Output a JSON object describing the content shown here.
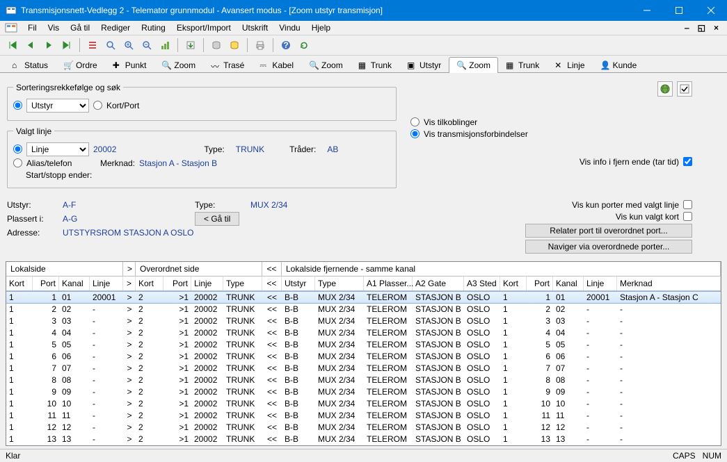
{
  "title": "Transmisjonsnett-Vedlegg 2 - Telemator grunnmodul - Avansert modus - [Zoom utstyr transmisjon]",
  "menu": [
    "Fil",
    "Vis",
    "Gå til",
    "Rediger",
    "Ruting",
    "Eksport/Import",
    "Utskrift",
    "Vindu",
    "Hjelp"
  ],
  "viewtabs": [
    {
      "label": "Status",
      "icon": "home"
    },
    {
      "label": "Ordre",
      "icon": "cart"
    },
    {
      "label": "Punkt",
      "icon": "plus"
    },
    {
      "label": "Zoom",
      "icon": "zoom"
    },
    {
      "label": "Trasé",
      "icon": "trase"
    },
    {
      "label": "Kabel",
      "icon": "cable"
    },
    {
      "label": "Zoom",
      "icon": "zoom2"
    },
    {
      "label": "Trunk",
      "icon": "trunk"
    },
    {
      "label": "Utstyr",
      "icon": "device"
    },
    {
      "label": "Zoom",
      "icon": "zoom3",
      "active": true
    },
    {
      "label": "Trunk",
      "icon": "trunk2"
    },
    {
      "label": "Linje",
      "icon": "line"
    },
    {
      "label": "Kunde",
      "icon": "cust"
    }
  ],
  "sort": {
    "legend": "Sorteringsrekkefølge og søk",
    "opt1": "Utstyr",
    "opt2": "Kort/Port"
  },
  "valgt": {
    "legend": "Valgt linje",
    "linje_label": "Linje",
    "linje_val": "20002",
    "type_label": "Type:",
    "type_val": "TRUNK",
    "trader_label": "Tråder:",
    "trader_val": "AB",
    "alias_label": "Alias/telefon",
    "merknad_label": "Merknad:",
    "merknad_val": "Stasjon A - Stasjon B",
    "start_label": "Start/stopp ender:"
  },
  "visopts": {
    "tilkoblinger": "Vis tilkoblinger",
    "transmisjon": "Vis transmisjonsforbindelser",
    "fjern": "Vis info i fjern ende (tar tid)"
  },
  "mid": {
    "utstyr_k": "Utstyr:",
    "utstyr_v": "A-F",
    "type_k": "Type:",
    "type_v": "MUX 2/34",
    "plassert_k": "Plassert i:",
    "plassert_v": "A-G",
    "adresse_k": "Adresse:",
    "adresse_v": "UTSTYRSROM STASJON A OSLO",
    "gaa_btn": "< Gå til",
    "porter_linje": "Vis kun porter med valgt linje",
    "porter_kort": "Vis kun valgt kort",
    "relater_btn": "Relater port til overordnet port...",
    "naviger_btn": "Naviger via overordnede porter..."
  },
  "grid": {
    "group1": "Lokalside",
    "group_gt": ">",
    "group2": "Overordnet side",
    "group_lt": "<<",
    "group3": "Lokalside fjernende - samme kanal",
    "cols": [
      "Kort",
      "Port",
      "Kanal",
      "Linje",
      ">",
      "Kort",
      "Port",
      "Linje",
      "Type",
      "<<",
      "Utstyr",
      "Type",
      "A1 Plasser...",
      "A2 Gate",
      "A3 Sted",
      "Kort",
      "Port",
      "Kanal",
      "Linje",
      "Merknad"
    ],
    "rows": [
      [
        "1",
        "1",
        "01",
        "20001",
        ">",
        "2",
        ">1",
        "20002",
        "TRUNK",
        "<<",
        "B-B",
        "MUX 2/34",
        "TELEROM",
        "STASJON B",
        "OSLO",
        "1",
        "1",
        "01",
        "20001",
        "Stasjon A - Stasjon C"
      ],
      [
        "1",
        "2",
        "02",
        "-",
        ">",
        "2",
        ">1",
        "20002",
        "TRUNK",
        "<<",
        "B-B",
        "MUX 2/34",
        "TELEROM",
        "STASJON B",
        "OSLO",
        "1",
        "2",
        "02",
        "-",
        "-"
      ],
      [
        "1",
        "3",
        "03",
        "-",
        ">",
        "2",
        ">1",
        "20002",
        "TRUNK",
        "<<",
        "B-B",
        "MUX 2/34",
        "TELEROM",
        "STASJON B",
        "OSLO",
        "1",
        "3",
        "03",
        "-",
        "-"
      ],
      [
        "1",
        "4",
        "04",
        "-",
        ">",
        "2",
        ">1",
        "20002",
        "TRUNK",
        "<<",
        "B-B",
        "MUX 2/34",
        "TELEROM",
        "STASJON B",
        "OSLO",
        "1",
        "4",
        "04",
        "-",
        "-"
      ],
      [
        "1",
        "5",
        "05",
        "-",
        ">",
        "2",
        ">1",
        "20002",
        "TRUNK",
        "<<",
        "B-B",
        "MUX 2/34",
        "TELEROM",
        "STASJON B",
        "OSLO",
        "1",
        "5",
        "05",
        "-",
        "-"
      ],
      [
        "1",
        "6",
        "06",
        "-",
        ">",
        "2",
        ">1",
        "20002",
        "TRUNK",
        "<<",
        "B-B",
        "MUX 2/34",
        "TELEROM",
        "STASJON B",
        "OSLO",
        "1",
        "6",
        "06",
        "-",
        "-"
      ],
      [
        "1",
        "7",
        "07",
        "-",
        ">",
        "2",
        ">1",
        "20002",
        "TRUNK",
        "<<",
        "B-B",
        "MUX 2/34",
        "TELEROM",
        "STASJON B",
        "OSLO",
        "1",
        "7",
        "07",
        "-",
        "-"
      ],
      [
        "1",
        "8",
        "08",
        "-",
        ">",
        "2",
        ">1",
        "20002",
        "TRUNK",
        "<<",
        "B-B",
        "MUX 2/34",
        "TELEROM",
        "STASJON B",
        "OSLO",
        "1",
        "8",
        "08",
        "-",
        "-"
      ],
      [
        "1",
        "9",
        "09",
        "-",
        ">",
        "2",
        ">1",
        "20002",
        "TRUNK",
        "<<",
        "B-B",
        "MUX 2/34",
        "TELEROM",
        "STASJON B",
        "OSLO",
        "1",
        "9",
        "09",
        "-",
        "-"
      ],
      [
        "1",
        "10",
        "10",
        "-",
        ">",
        "2",
        ">1",
        "20002",
        "TRUNK",
        "<<",
        "B-B",
        "MUX 2/34",
        "TELEROM",
        "STASJON B",
        "OSLO",
        "1",
        "10",
        "10",
        "-",
        "-"
      ],
      [
        "1",
        "11",
        "11",
        "-",
        ">",
        "2",
        ">1",
        "20002",
        "TRUNK",
        "<<",
        "B-B",
        "MUX 2/34",
        "TELEROM",
        "STASJON B",
        "OSLO",
        "1",
        "11",
        "11",
        "-",
        "-"
      ],
      [
        "1",
        "12",
        "12",
        "-",
        ">",
        "2",
        ">1",
        "20002",
        "TRUNK",
        "<<",
        "B-B",
        "MUX 2/34",
        "TELEROM",
        "STASJON B",
        "OSLO",
        "1",
        "12",
        "12",
        "-",
        "-"
      ],
      [
        "1",
        "13",
        "13",
        "-",
        ">",
        "2",
        ">1",
        "20002",
        "TRUNK",
        "<<",
        "B-B",
        "MUX 2/34",
        "TELEROM",
        "STASJON B",
        "OSLO",
        "1",
        "13",
        "13",
        "-",
        "-"
      ]
    ]
  },
  "status": {
    "left": "Klar",
    "caps": "CAPS",
    "num": "NUM"
  },
  "colors": {
    "titlebar": "#0078d7",
    "link": "#1a3e9c",
    "sel_bg": "#d5e8fa"
  }
}
